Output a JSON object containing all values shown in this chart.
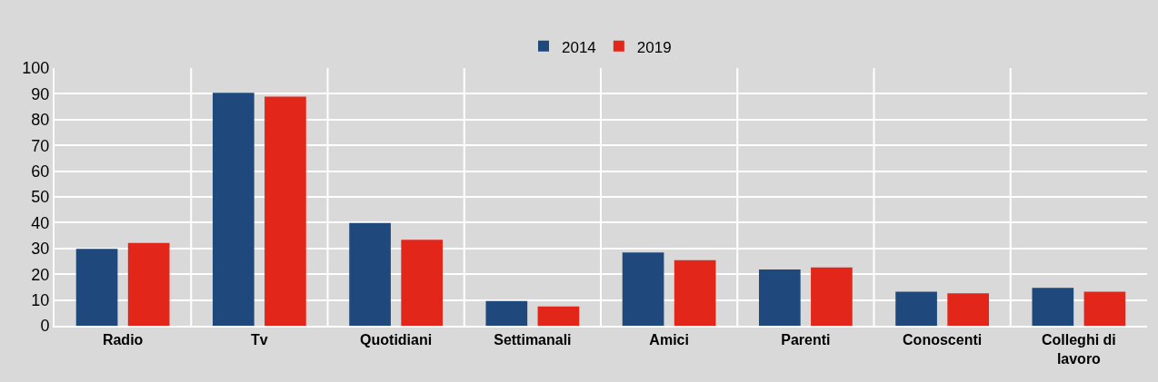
{
  "chart_data": {
    "type": "bar",
    "categories": [
      "Radio",
      "Tv",
      "Quotidiani",
      "Settimanali",
      "Amici",
      "Parenti",
      "Conoscenti",
      "Colleghi di lavoro"
    ],
    "series": [
      {
        "name": "2014",
        "color": "#1f497d",
        "values": [
          29.8,
          90.4,
          39.9,
          9.6,
          28.4,
          21.8,
          13.2,
          14.7
        ]
      },
      {
        "name": "2019",
        "color": "#e3261a",
        "values": [
          32.1,
          88.9,
          33.4,
          7.5,
          25.4,
          22.6,
          12.6,
          13.2
        ]
      }
    ],
    "ylim": [
      0,
      100
    ],
    "yticks": [
      0,
      10,
      20,
      30,
      40,
      50,
      60,
      70,
      80,
      90,
      100
    ],
    "grid": true,
    "legend": "top"
  }
}
